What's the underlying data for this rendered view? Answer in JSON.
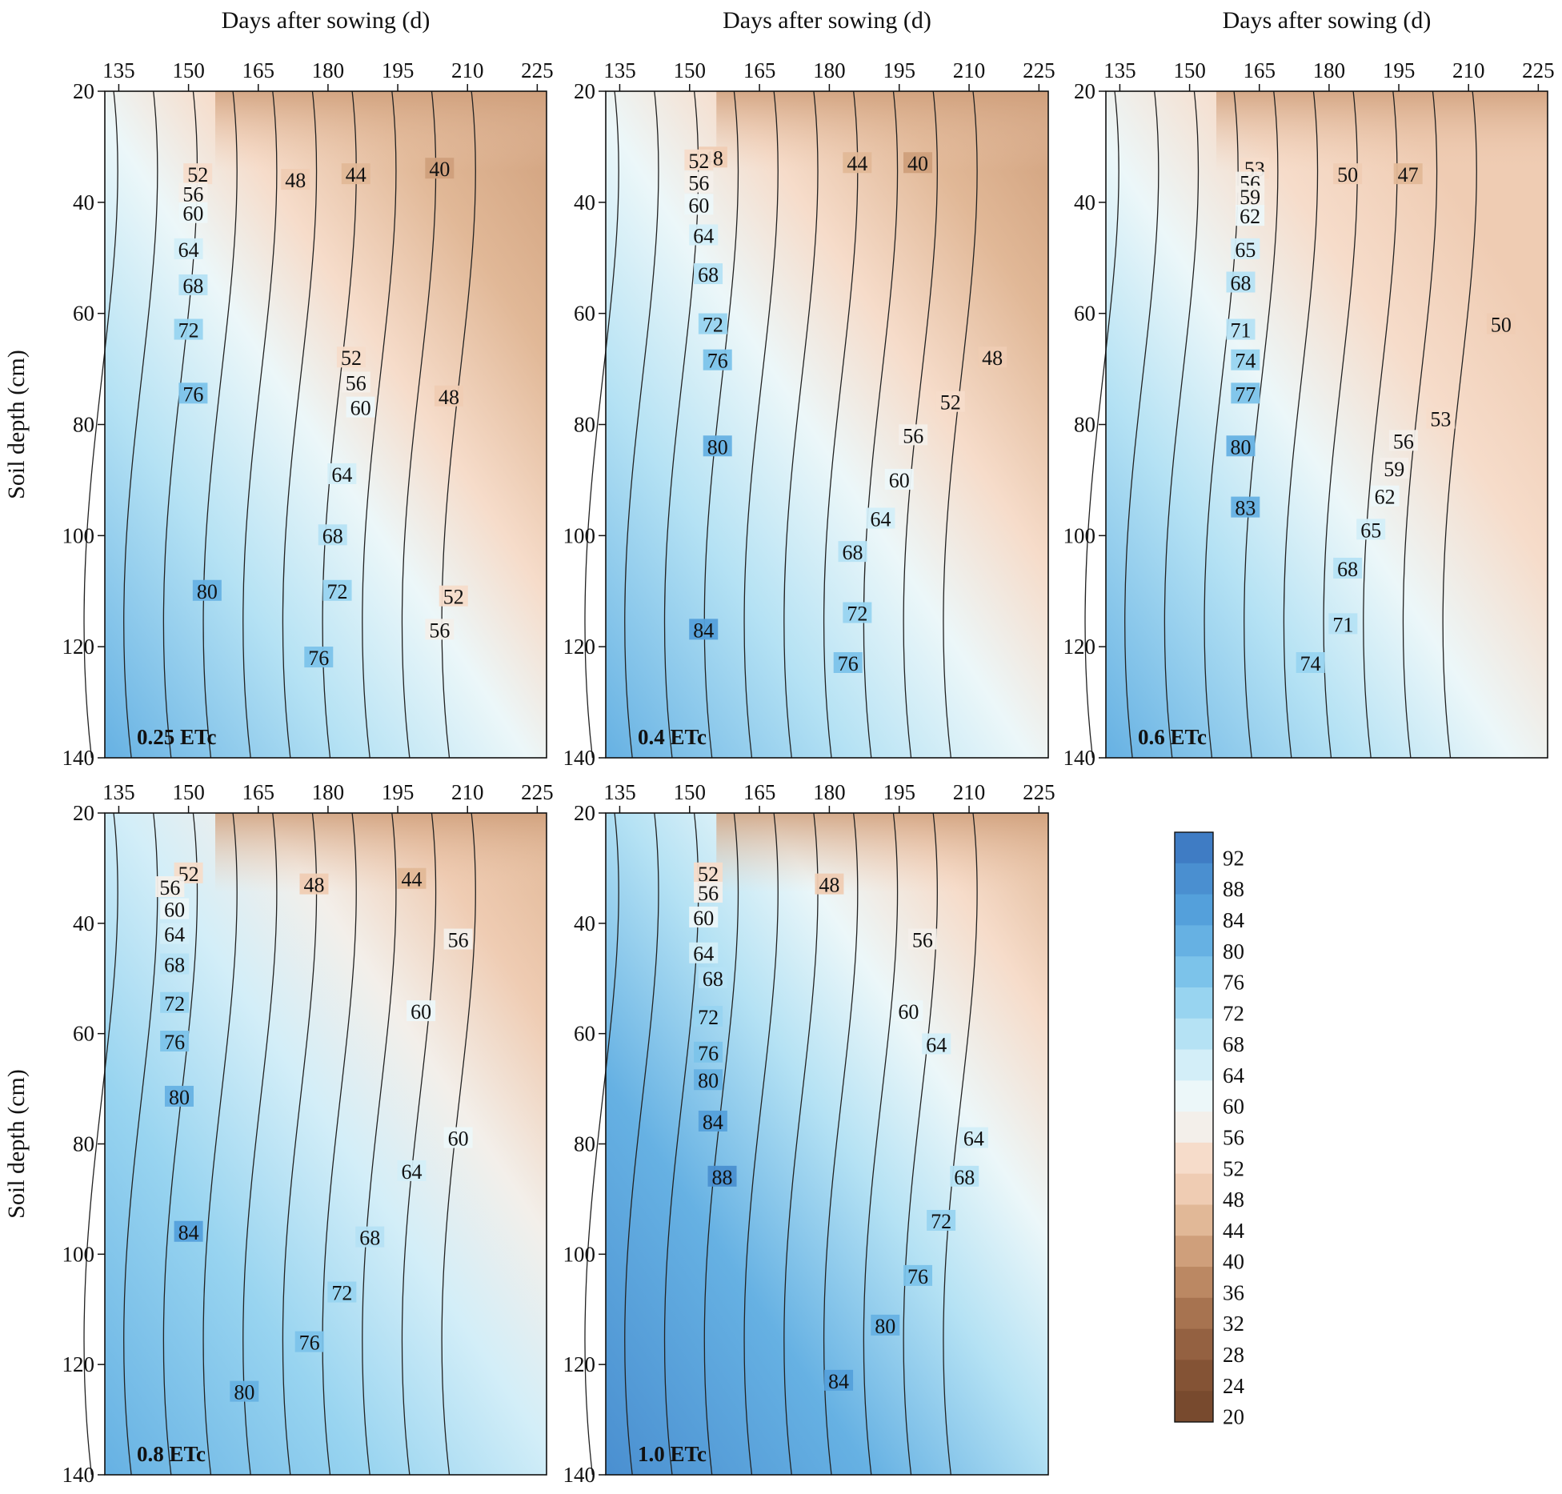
{
  "chart_data": {
    "type": "heatmap",
    "x_axis_label": "Days after sowing (d)",
    "y_axis_label": "Soil depth (cm)",
    "x_ticks": [
      135,
      150,
      165,
      180,
      195,
      210,
      225
    ],
    "y_ticks": [
      20,
      40,
      60,
      80,
      100,
      120,
      140
    ],
    "xlim": [
      132,
      227
    ],
    "ylim": [
      20,
      140
    ],
    "legend": {
      "placement": "bottom-right",
      "levels": [
        92,
        88,
        84,
        80,
        76,
        72,
        68,
        64,
        60,
        56,
        52,
        48,
        44,
        40,
        36,
        32,
        28,
        24,
        20
      ],
      "colors": [
        "#3f7cc4",
        "#4a8fd0",
        "#54a0db",
        "#66b1e3",
        "#7cc3ea",
        "#98d4f0",
        "#b5e2f4",
        "#d3eef8",
        "#ecf7f9",
        "#f3efea",
        "#f6dcca",
        "#efccb3",
        "#e1b897",
        "#cf9f7b",
        "#bb8863",
        "#a77350",
        "#946141",
        "#845335",
        "#784a2e"
      ]
    },
    "panels": [
      {
        "label": "0.25 ETc",
        "contour_labels": [
          {
            "text": "40",
            "x": 204,
            "y": 34
          },
          {
            "text": "44",
            "x": 186,
            "y": 35
          },
          {
            "text": "48",
            "x": 173,
            "y": 36
          },
          {
            "text": "52",
            "x": 152,
            "y": 35
          },
          {
            "text": "56",
            "x": 151,
            "y": 38.5
          },
          {
            "text": "60",
            "x": 151,
            "y": 42
          },
          {
            "text": "64",
            "x": 150,
            "y": 48.5
          },
          {
            "text": "68",
            "x": 151,
            "y": 55
          },
          {
            "text": "72",
            "x": 150,
            "y": 63
          },
          {
            "text": "76",
            "x": 151,
            "y": 74.5
          },
          {
            "text": "80",
            "x": 154,
            "y": 110
          },
          {
            "text": "52",
            "x": 185,
            "y": 68
          },
          {
            "text": "56",
            "x": 186,
            "y": 72.5
          },
          {
            "text": "60",
            "x": 187,
            "y": 77
          },
          {
            "text": "64",
            "x": 183,
            "y": 89
          },
          {
            "text": "68",
            "x": 181,
            "y": 100
          },
          {
            "text": "72",
            "x": 182,
            "y": 110
          },
          {
            "text": "76",
            "x": 178,
            "y": 122
          },
          {
            "text": "48",
            "x": 206,
            "y": 75
          },
          {
            "text": "52",
            "x": 207,
            "y": 111
          },
          {
            "text": "56",
            "x": 204,
            "y": 117
          }
        ]
      },
      {
        "label": "0.4 ETc",
        "contour_labels": [
          {
            "text": "40",
            "x": 199,
            "y": 33
          },
          {
            "text": "44",
            "x": 186,
            "y": 33
          },
          {
            "text": "48",
            "x": 155,
            "y": 32
          },
          {
            "text": "52",
            "x": 152,
            "y": 32.5
          },
          {
            "text": "56",
            "x": 152,
            "y": 36.5
          },
          {
            "text": "60",
            "x": 152,
            "y": 40.5
          },
          {
            "text": "64",
            "x": 153,
            "y": 46
          },
          {
            "text": "68",
            "x": 154,
            "y": 53
          },
          {
            "text": "72",
            "x": 155,
            "y": 62
          },
          {
            "text": "76",
            "x": 156,
            "y": 68.5
          },
          {
            "text": "80",
            "x": 156,
            "y": 84
          },
          {
            "text": "84",
            "x": 153,
            "y": 117
          },
          {
            "text": "48",
            "x": 215,
            "y": 68
          },
          {
            "text": "52",
            "x": 206,
            "y": 76
          },
          {
            "text": "56",
            "x": 198,
            "y": 82
          },
          {
            "text": "60",
            "x": 195,
            "y": 90
          },
          {
            "text": "64",
            "x": 191,
            "y": 97
          },
          {
            "text": "68",
            "x": 185,
            "y": 103
          },
          {
            "text": "72",
            "x": 186,
            "y": 114
          },
          {
            "text": "76",
            "x": 184,
            "y": 123
          }
        ]
      },
      {
        "label": "0.6 ETc",
        "contour_labels": [
          {
            "text": "47",
            "x": 197,
            "y": 35
          },
          {
            "text": "50",
            "x": 184,
            "y": 35
          },
          {
            "text": "53",
            "x": 164,
            "y": 34
          },
          {
            "text": "56",
            "x": 163,
            "y": 36.5
          },
          {
            "text": "59",
            "x": 163,
            "y": 39
          },
          {
            "text": "62",
            "x": 163,
            "y": 42.5
          },
          {
            "text": "65",
            "x": 162,
            "y": 48.5
          },
          {
            "text": "68",
            "x": 161,
            "y": 54.5
          },
          {
            "text": "71",
            "x": 161,
            "y": 63
          },
          {
            "text": "74",
            "x": 162,
            "y": 68.5
          },
          {
            "text": "77",
            "x": 162,
            "y": 74.5
          },
          {
            "text": "80",
            "x": 161,
            "y": 84
          },
          {
            "text": "83",
            "x": 162,
            "y": 95
          },
          {
            "text": "50",
            "x": 217,
            "y": 62
          },
          {
            "text": "53",
            "x": 204,
            "y": 79
          },
          {
            "text": "56",
            "x": 196,
            "y": 83
          },
          {
            "text": "59",
            "x": 194,
            "y": 88
          },
          {
            "text": "62",
            "x": 192,
            "y": 93
          },
          {
            "text": "65",
            "x": 189,
            "y": 99
          },
          {
            "text": "68",
            "x": 184,
            "y": 106
          },
          {
            "text": "71",
            "x": 183,
            "y": 116
          },
          {
            "text": "74",
            "x": 176,
            "y": 123
          }
        ]
      },
      {
        "label": "0.8 ETc",
        "contour_labels": [
          {
            "text": "44",
            "x": 198,
            "y": 32
          },
          {
            "text": "48",
            "x": 177,
            "y": 33
          },
          {
            "text": "52",
            "x": 150,
            "y": 31
          },
          {
            "text": "56",
            "x": 146,
            "y": 33.5
          },
          {
            "text": "60",
            "x": 147,
            "y": 37.5
          },
          {
            "text": "64",
            "x": 147,
            "y": 42
          },
          {
            "text": "68",
            "x": 147,
            "y": 47.5
          },
          {
            "text": "72",
            "x": 147,
            "y": 54.5
          },
          {
            "text": "76",
            "x": 147,
            "y": 61.5
          },
          {
            "text": "80",
            "x": 148,
            "y": 71.5
          },
          {
            "text": "84",
            "x": 150,
            "y": 96
          },
          {
            "text": "80",
            "x": 162,
            "y": 125
          },
          {
            "text": "56",
            "x": 208,
            "y": 43
          },
          {
            "text": "60",
            "x": 200,
            "y": 56
          },
          {
            "text": "60",
            "x": 208,
            "y": 79
          },
          {
            "text": "64",
            "x": 198,
            "y": 85
          },
          {
            "text": "68",
            "x": 189,
            "y": 97
          },
          {
            "text": "72",
            "x": 183,
            "y": 107
          },
          {
            "text": "76",
            "x": 176,
            "y": 116
          }
        ]
      },
      {
        "label": "1.0 ETc",
        "contour_labels": [
          {
            "text": "48",
            "x": 180,
            "y": 33
          },
          {
            "text": "52",
            "x": 154,
            "y": 31
          },
          {
            "text": "56",
            "x": 154,
            "y": 34.5
          },
          {
            "text": "60",
            "x": 153,
            "y": 39
          },
          {
            "text": "64",
            "x": 153,
            "y": 45.5
          },
          {
            "text": "68",
            "x": 155,
            "y": 50
          },
          {
            "text": "72",
            "x": 154,
            "y": 57
          },
          {
            "text": "76",
            "x": 154,
            "y": 63.5
          },
          {
            "text": "80",
            "x": 154,
            "y": 68.5
          },
          {
            "text": "84",
            "x": 155,
            "y": 76
          },
          {
            "text": "88",
            "x": 157,
            "y": 86
          },
          {
            "text": "56",
            "x": 200,
            "y": 43
          },
          {
            "text": "60",
            "x": 197,
            "y": 56
          },
          {
            "text": "64",
            "x": 203,
            "y": 62
          },
          {
            "text": "64",
            "x": 211,
            "y": 79
          },
          {
            "text": "68",
            "x": 209,
            "y": 86
          },
          {
            "text": "72",
            "x": 204,
            "y": 94
          },
          {
            "text": "76",
            "x": 199,
            "y": 104
          },
          {
            "text": "80",
            "x": 192,
            "y": 113
          },
          {
            "text": "84",
            "x": 182,
            "y": 123
          }
        ]
      }
    ]
  }
}
